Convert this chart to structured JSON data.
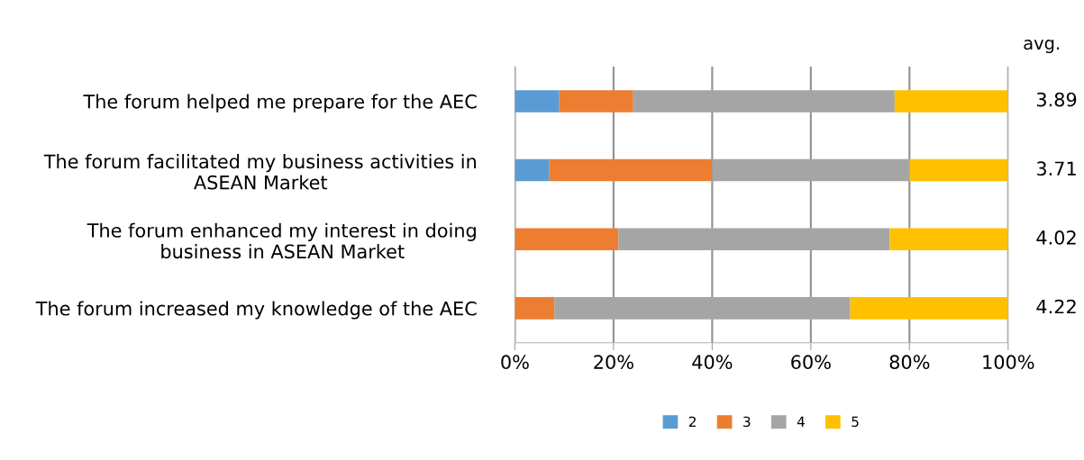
{
  "chart_data": {
    "type": "bar",
    "orientation": "horizontal",
    "stacked": true,
    "categories": [
      "The forum helped me prepare for the AEC",
      "The forum facilitated my business activities in ASEAN Market",
      "The forum enhanced my interest in doing business in ASEAN Market",
      "The forum increased my knowledge of the AEC"
    ],
    "series": [
      {
        "name": "2",
        "color": "#5b9bd5",
        "values": [
          9,
          7,
          0,
          0
        ]
      },
      {
        "name": "3",
        "color": "#ed7d31",
        "values": [
          15,
          33,
          21,
          8
        ]
      },
      {
        "name": "4",
        "color": "#a5a5a5",
        "values": [
          53,
          40,
          55,
          60
        ]
      },
      {
        "name": "5",
        "color": "#ffc000",
        "values": [
          23,
          20,
          24,
          32
        ]
      }
    ],
    "xlim": [
      0,
      100
    ],
    "xticks": [
      {
        "value": 0,
        "label": "0%"
      },
      {
        "value": 20,
        "label": "20%"
      },
      {
        "value": 40,
        "label": "40%"
      },
      {
        "value": 60,
        "label": "60%"
      },
      {
        "value": 80,
        "label": "80%"
      },
      {
        "value": 100,
        "label": "100%"
      }
    ],
    "grid": "x",
    "legend": "bottom",
    "annotations": [
      "avg.",
      "3.89",
      "3.71",
      "4.02",
      "4.22"
    ]
  }
}
